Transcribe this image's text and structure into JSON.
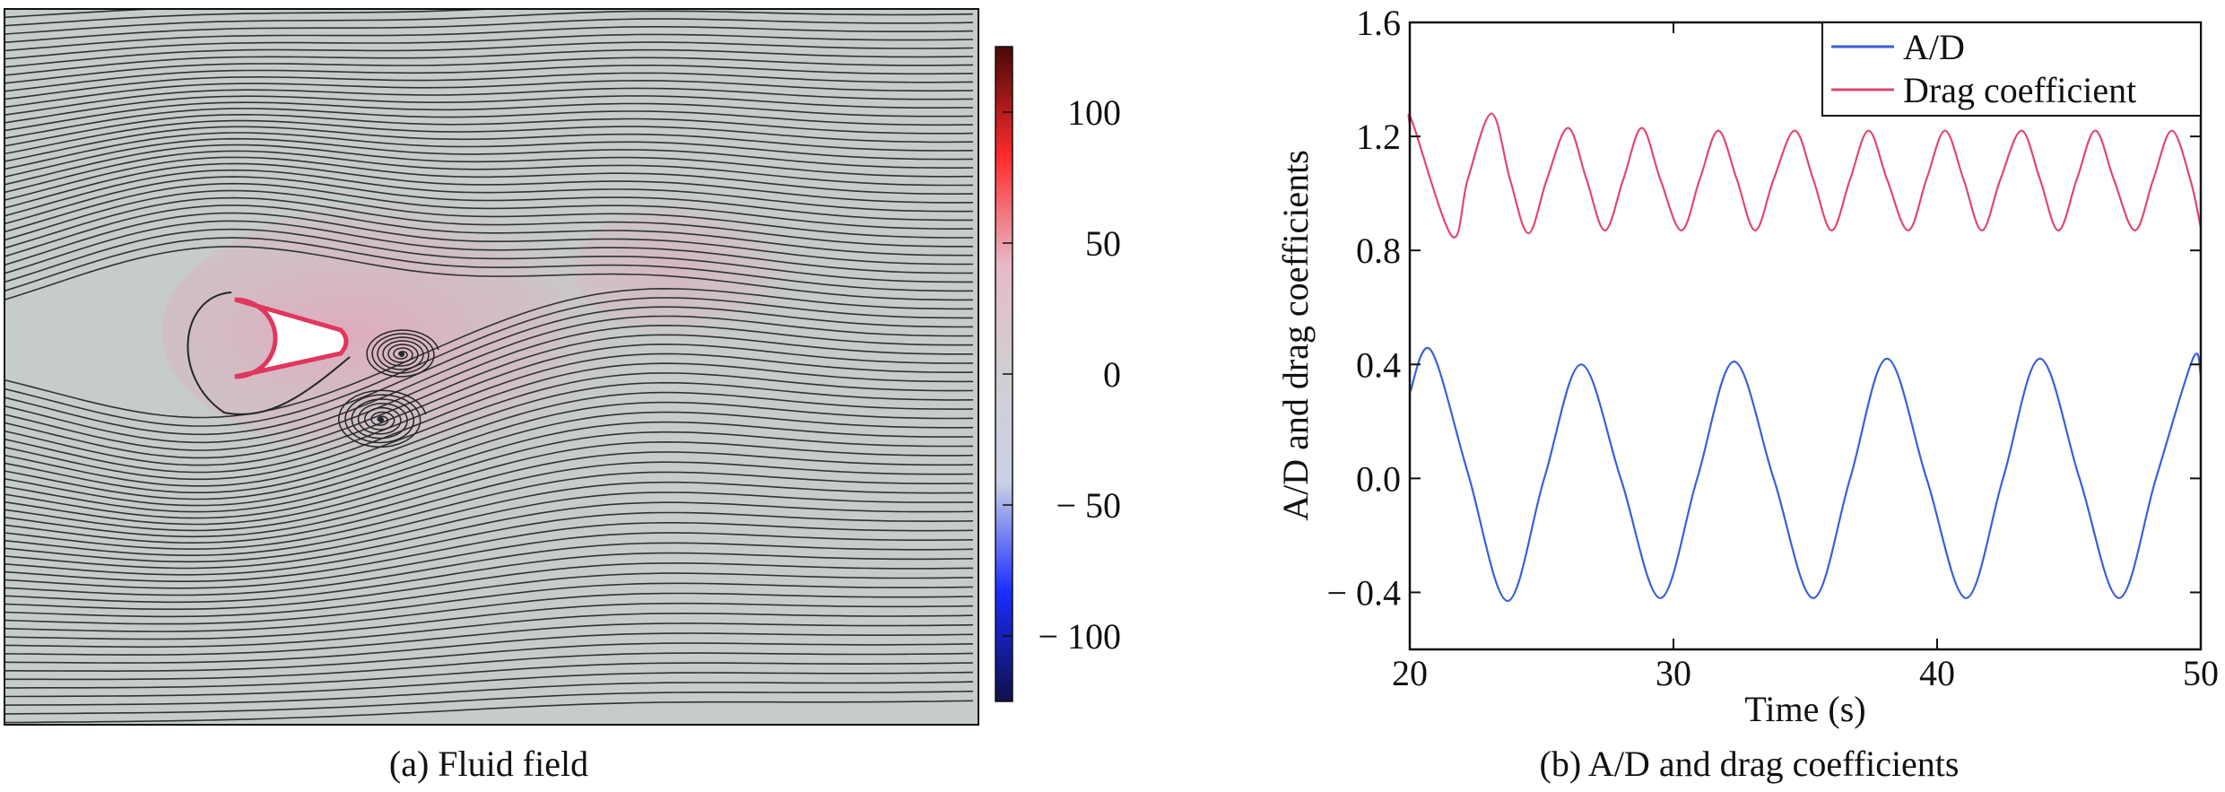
{
  "panel_a": {
    "caption": "(a) Fluid field",
    "colorbar": {
      "ticks": [
        100,
        50,
        0,
        -50,
        -100
      ],
      "tick_labels": [
        "100",
        "50",
        "0",
        "− 50",
        "− 100"
      ],
      "range": [
        -125,
        125
      ],
      "colormap": [
        "#10104a",
        "#1a2cff",
        "#c9cfe6",
        "#cfcfd3",
        "#e8b9c8",
        "#ff2a2a",
        "#4a0808"
      ]
    },
    "field_background": "#c6ccca",
    "streamline_color": "#222628",
    "body_edge_color": "#e0375e"
  },
  "panel_b": {
    "caption": "(b) A/D and drag coefficients"
  },
  "chart_data": {
    "type": "line",
    "xlabel": "Time (s)",
    "ylabel": "A/D and drag coefficients",
    "xlim": [
      20,
      50
    ],
    "ylim": [
      -0.6,
      1.6
    ],
    "xticks": [
      20,
      30,
      40,
      50
    ],
    "yticks": [
      -0.4,
      0.0,
      0.4,
      0.8,
      1.2,
      1.6
    ],
    "ytick_labels": [
      "− 0.4",
      "0.0",
      "0.4",
      "0.8",
      "1.2",
      "1.6"
    ],
    "grid": false,
    "legend": "top-right",
    "series": [
      {
        "name": "A/D",
        "color": "#3a5fd8",
        "x": [
          20.0,
          20.8,
          22.2,
          23.7,
          25.1,
          26.5,
          28.0,
          29.5,
          30.9,
          32.3,
          33.8,
          35.3,
          36.7,
          38.1,
          39.6,
          41.1,
          42.5,
          43.9,
          45.4,
          46.9,
          48.3,
          49.7,
          50.0
        ],
        "y": [
          0.3,
          0.45,
          0.02,
          -0.43,
          0.0,
          0.4,
          0.0,
          -0.42,
          0.0,
          0.41,
          0.0,
          -0.42,
          0.0,
          0.42,
          0.0,
          -0.42,
          0.0,
          0.42,
          0.0,
          -0.42,
          0.0,
          0.42,
          0.36
        ]
      },
      {
        "name": "Drag coefficient",
        "color": "#e2476d",
        "x": [
          20.0,
          20.1,
          21.6,
          22.2,
          23.1,
          23.8,
          24.5,
          25.2,
          26.0,
          26.7,
          27.4,
          28.1,
          28.8,
          29.5,
          30.3,
          31.0,
          31.7,
          32.4,
          33.1,
          33.8,
          34.6,
          35.3,
          36.0,
          36.7,
          37.4,
          38.1,
          38.9,
          39.6,
          40.3,
          41.0,
          41.7,
          42.4,
          43.2,
          43.9,
          44.6,
          45.3,
          46.0,
          46.7,
          47.5,
          48.2,
          48.9,
          49.6,
          50.0
        ],
        "y": [
          1.24,
          1.25,
          0.85,
          1.05,
          1.28,
          1.05,
          0.86,
          1.05,
          1.23,
          1.05,
          0.87,
          1.05,
          1.23,
          1.05,
          0.87,
          1.05,
          1.22,
          1.05,
          0.87,
          1.05,
          1.22,
          1.05,
          0.87,
          1.05,
          1.22,
          1.05,
          0.87,
          1.05,
          1.22,
          1.05,
          0.87,
          1.05,
          1.22,
          1.05,
          0.87,
          1.05,
          1.22,
          1.05,
          0.87,
          1.05,
          1.22,
          1.05,
          0.88
        ]
      }
    ]
  }
}
